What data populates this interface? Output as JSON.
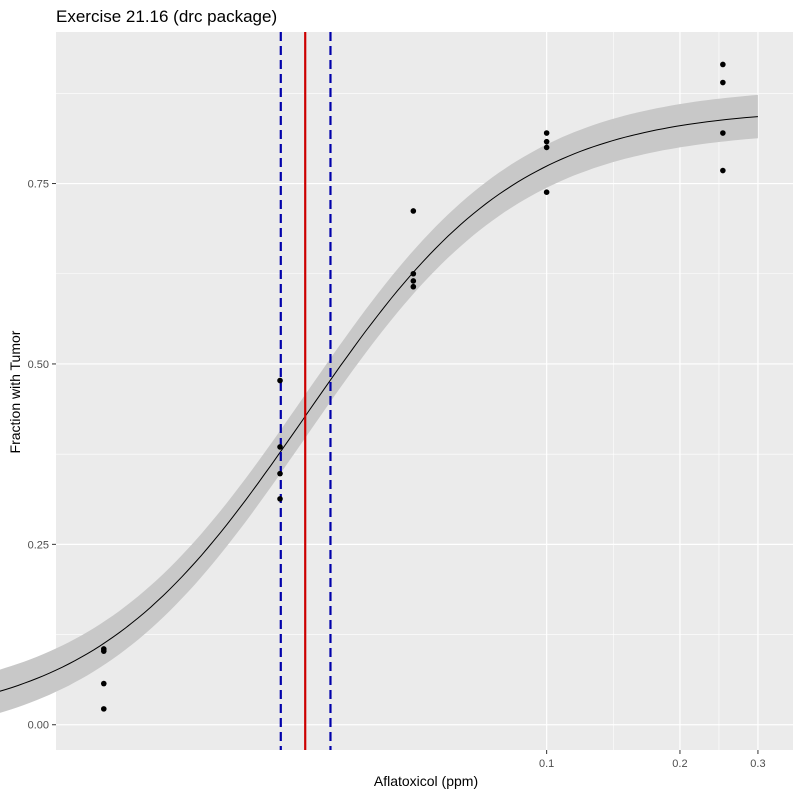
{
  "chart_data": {
    "type": "scatter",
    "title": "Exercise 21.16 (drc package)",
    "xlabel": "Aflatoxicol (ppm)",
    "ylabel": "Fraction with Tumor",
    "x_scale": "log",
    "xlim": [
      0.0078,
      0.36
    ],
    "ylim": [
      -0.035,
      0.96
    ],
    "x_ticks": [
      {
        "value": 0.1,
        "label": "0.1"
      },
      {
        "value": 0.2,
        "label": "0.2"
      },
      {
        "value": 0.3,
        "label": "0.3"
      }
    ],
    "y_ticks": [
      {
        "value": 0.0,
        "label": "0.00"
      },
      {
        "value": 0.25,
        "label": "0.25"
      },
      {
        "value": 0.5,
        "label": "0.50"
      },
      {
        "value": 0.75,
        "label": "0.75"
      }
    ],
    "points": [
      {
        "x": 0.01,
        "y": 0.022
      },
      {
        "x": 0.01,
        "y": 0.057
      },
      {
        "x": 0.01,
        "y": 0.102
      },
      {
        "x": 0.01,
        "y": 0.105
      },
      {
        "x": 0.025,
        "y": 0.313
      },
      {
        "x": 0.025,
        "y": 0.348
      },
      {
        "x": 0.025,
        "y": 0.385
      },
      {
        "x": 0.025,
        "y": 0.477
      },
      {
        "x": 0.05,
        "y": 0.607
      },
      {
        "x": 0.05,
        "y": 0.615
      },
      {
        "x": 0.05,
        "y": 0.625
      },
      {
        "x": 0.05,
        "y": 0.712
      },
      {
        "x": 0.1,
        "y": 0.738
      },
      {
        "x": 0.1,
        "y": 0.8
      },
      {
        "x": 0.1,
        "y": 0.808
      },
      {
        "x": 0.1,
        "y": 0.82
      },
      {
        "x": 0.25,
        "y": 0.768
      },
      {
        "x": 0.25,
        "y": 0.82
      },
      {
        "x": 0.25,
        "y": 0.89
      },
      {
        "x": 0.25,
        "y": 0.915
      }
    ],
    "fit": {
      "model": "log-logistic",
      "lower": 0.0,
      "upper": 0.855,
      "ed50": 0.0285,
      "slope": 1.8,
      "x_range": [
        0.0058,
        0.3
      ],
      "band_halfwidth": 0.03
    },
    "vlines": [
      {
        "x": 0.0285,
        "style": "solid",
        "color": "#cc0000"
      },
      {
        "x": 0.0251,
        "style": "dashed",
        "color": "#0000aa"
      },
      {
        "x": 0.0325,
        "style": "dashed",
        "color": "#0000aa"
      }
    ],
    "grid": true,
    "panel_background": "#ebebeb",
    "band_color": "#c8c8c8",
    "point_color": "#000000",
    "curve_color": "#000000"
  }
}
